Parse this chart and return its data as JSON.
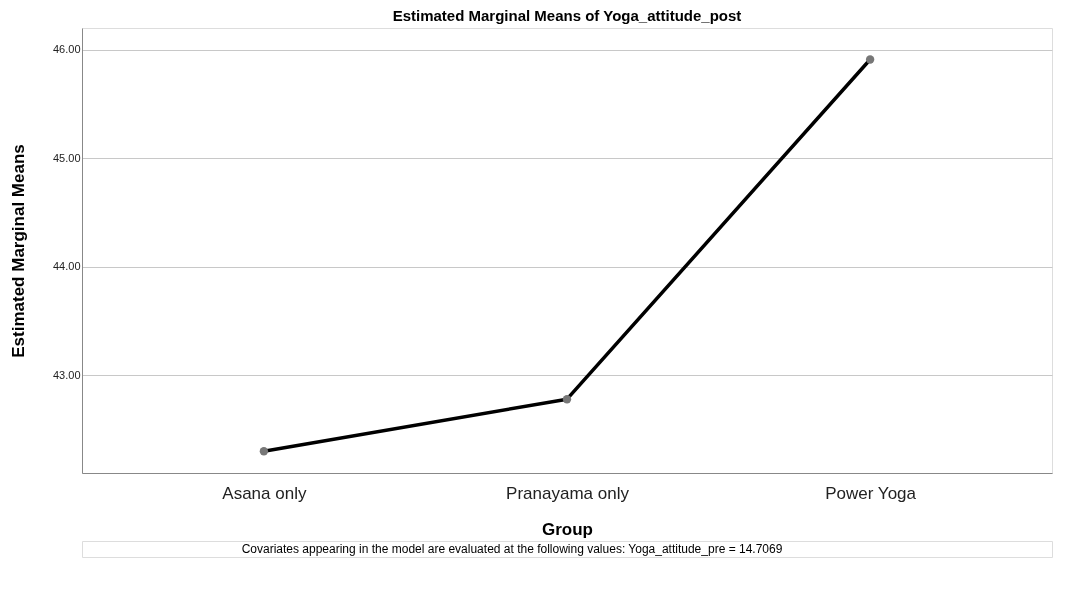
{
  "chart_data": {
    "type": "line",
    "title": "Estimated Marginal Means of Yoga_attitude_post",
    "xlabel": "Group",
    "ylabel": "Estimated Marginal Means",
    "categories": [
      "Asana only",
      "Pranayama only",
      "Power Yoga"
    ],
    "series": [
      {
        "color": "#000000",
        "values": [
          42.3,
          42.78,
          45.91
        ]
      }
    ],
    "ylim": [
      42.1,
      46.2
    ],
    "yticks": [
      {
        "value": 43,
        "label": "43.00"
      },
      {
        "value": 44,
        "label": "44.00"
      },
      {
        "value": 45,
        "label": "45.00"
      },
      {
        "value": 46,
        "label": "46.00"
      }
    ],
    "grid": "y",
    "marker": "circle",
    "line_style": "solid",
    "annotations": [
      "Covariates appearing in the model are evaluated at the following values: Yoga_attitude_pre = 14.7069"
    ]
  }
}
